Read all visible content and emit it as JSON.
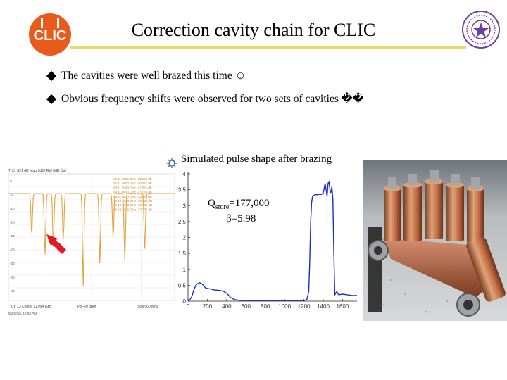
{
  "slide": {
    "title": "Correction cavity chain for CLIC",
    "logo_text": "CLIC",
    "bullets": [
      {
        "text": "The cavities were well brazed this time ☺"
      },
      {
        "text": "Obvious frequency shifts were observed for two sets of cavities ��"
      }
    ],
    "colors": {
      "title_line": "#e7d96a",
      "logo_red": "#e85b1c",
      "pulse_line": "#1a2ec4",
      "spectrum_line": "#e5a13c",
      "arrow": "#e01b22"
    }
  },
  "pulse_plot": {
    "title": "Simulated pulse shape after brazing",
    "q_label": "Q",
    "q_sub": "store",
    "q_value": "=177,000",
    "beta_label": "β=5.98",
    "x_ticks": [
      "0",
      "200",
      "400",
      "600",
      "800",
      "1000",
      "1200",
      "1400",
      "1600"
    ],
    "y_ticks": [
      "0",
      "0.5",
      "1",
      "1.5",
      "2",
      "2.5",
      "3",
      "3.5",
      "4"
    ]
  },
  "chart_data": {
    "type": "line",
    "xlim": [
      0,
      1750
    ],
    "ylim": [
      0,
      4
    ],
    "x": [
      0,
      20,
      40,
      60,
      80,
      100,
      120,
      140,
      160,
      180,
      200,
      240,
      280,
      320,
      360,
      400,
      440,
      480,
      520,
      560,
      600,
      650,
      700,
      750,
      800,
      850,
      900,
      950,
      1000,
      1050,
      1100,
      1150,
      1200,
      1230,
      1250,
      1260,
      1270,
      1280,
      1290,
      1300,
      1320,
      1340,
      1360,
      1380,
      1400,
      1410,
      1420,
      1430,
      1440,
      1450,
      1460,
      1470,
      1480,
      1490,
      1500,
      1510,
      1520,
      1540,
      1560,
      1600,
      1650,
      1700,
      1750
    ],
    "y": [
      0,
      0.05,
      0.15,
      0.35,
      0.5,
      0.55,
      0.58,
      0.55,
      0.5,
      0.42,
      0.4,
      0.38,
      0.35,
      0.34,
      0.32,
      0.25,
      0.12,
      0.05,
      0.03,
      0.02,
      0.02,
      0.02,
      0.02,
      0.02,
      0.02,
      0.02,
      0.02,
      0.02,
      0.02,
      0.02,
      0.02,
      0.02,
      0.02,
      0.05,
      0.3,
      1.2,
      2.5,
      3.1,
      3.3,
      3.32,
      3.35,
      3.34,
      3.36,
      3.35,
      3.4,
      3.55,
      3.7,
      3.5,
      3.3,
      3.7,
      3.75,
      3.5,
      3.4,
      3.6,
      3.2,
      1.5,
      0.2,
      0.3,
      0.2,
      0.22,
      0.2,
      0.18,
      0.18
    ]
  },
  "spectrum": {
    "header": "Trc3  S21  dB Mag  5dB/ Ref  0dB  Cal",
    "ref_label": "Trc",
    "start_label": "Ctr 13 Center 11.994 GHz",
    "pwr_label": "Pb -20 dBm",
    "span_label": "Span 60 MHz",
    "footer": "9/2/2016, 12:53 PM",
    "y_ticks": [
      "0",
      "-5",
      "-10",
      "-15",
      "-20",
      "-25",
      "-30",
      "-35",
      "-40"
    ],
    "markers": [
      "M1  11.9550 GHz  -33.506 dB",
      "M2  11.9650 GHz  -30.617 dB",
      "M3  11.9740 GHz  -41.315 dB",
      "M4  11.9840 GHz  -37.183 dB",
      "M5  11.9930 GHz  -41.095 dB",
      "M6  12.0030 GHz  -38.123 dB",
      "M7  12.0130 GHz  -35.735 dB",
      "M8  12.0220 GHz  -37.776 dB"
    ],
    "dips": [
      0.14,
      0.22,
      0.27,
      0.33,
      0.45,
      0.55,
      0.63,
      0.7,
      0.82
    ],
    "dip_depth": [
      0.38,
      0.55,
      0.45,
      0.42,
      0.82,
      0.62,
      0.4,
      0.6,
      0.5
    ]
  }
}
